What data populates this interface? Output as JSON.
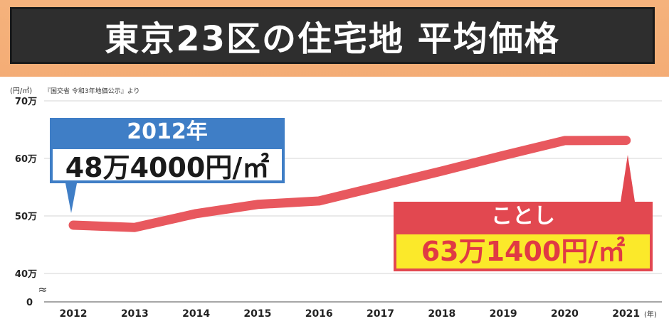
{
  "title": "東京23区の住宅地 平均価格",
  "source": "『国交省 令和3年地価公示』より",
  "chart_data": {
    "type": "line",
    "y_unit": "(円/㎡)",
    "x_unit": "(年)",
    "categories": [
      "2012",
      "2013",
      "2014",
      "2015",
      "2016",
      "2017",
      "2018",
      "2019",
      "2020",
      "2021"
    ],
    "series": [
      {
        "values": [
          48.4,
          48.0,
          50.4,
          52.0,
          52.6,
          55.2,
          57.8,
          60.5,
          63.1,
          63.14
        ],
        "color": "#e8585e"
      }
    ],
    "y_unit_value": "万円/㎡",
    "ylim": [
      40,
      70
    ],
    "y_ticks": [
      {
        "v": 40,
        "label": "40万"
      },
      {
        "v": 50,
        "label": "50万"
      },
      {
        "v": 60,
        "label": "60万"
      },
      {
        "v": 70,
        "label": "70万"
      }
    ],
    "y_zero_label": "0",
    "break_symbol": "≈",
    "grid": true
  },
  "callouts": {
    "first": {
      "year": "2012年",
      "value": "48万4000円/㎡",
      "color": "#3f7ec6"
    },
    "last": {
      "label": "ことし",
      "value": "63万1400円/㎡",
      "color": "#e24850",
      "value_bg": "#fbe92a"
    }
  }
}
